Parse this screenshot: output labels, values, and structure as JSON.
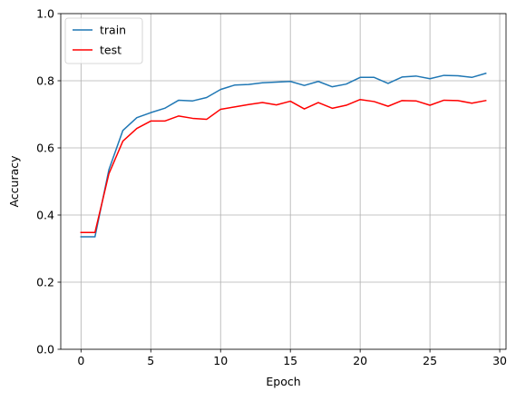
{
  "chart_data": {
    "type": "line",
    "title": "",
    "xlabel": "Epoch",
    "ylabel": "Accuracy",
    "xlim": [
      -1.45,
      30.45
    ],
    "ylim": [
      0.0,
      1.0
    ],
    "xticks": [
      0,
      5,
      10,
      15,
      20,
      25,
      30
    ],
    "xtick_labels": [
      "0",
      "5",
      "10",
      "15",
      "20",
      "25",
      "30"
    ],
    "yticks": [
      0.0,
      0.2,
      0.4,
      0.6,
      0.8,
      1.0
    ],
    "ytick_labels": [
      "0.0",
      "0.2",
      "0.4",
      "0.6",
      "0.8",
      "1.0"
    ],
    "grid": true,
    "legend_position": "upper-left",
    "x": [
      0,
      1,
      2,
      3,
      4,
      5,
      6,
      7,
      8,
      9,
      10,
      11,
      12,
      13,
      14,
      15,
      16,
      17,
      18,
      19,
      20,
      21,
      22,
      23,
      24,
      25,
      26,
      27,
      28,
      29
    ],
    "series": [
      {
        "name": "train",
        "color": "#1f77b4",
        "values": [
          0.335,
          0.335,
          0.535,
          0.652,
          0.69,
          0.705,
          0.718,
          0.742,
          0.74,
          0.75,
          0.774,
          0.787,
          0.789,
          0.794,
          0.796,
          0.798,
          0.786,
          0.798,
          0.782,
          0.79,
          0.81,
          0.81,
          0.792,
          0.811,
          0.814,
          0.806,
          0.816,
          0.815,
          0.81,
          0.822
        ]
      },
      {
        "name": "test",
        "color": "#ff0000",
        "values": [
          0.348,
          0.348,
          0.523,
          0.62,
          0.658,
          0.68,
          0.68,
          0.695,
          0.688,
          0.685,
          0.715,
          0.722,
          0.729,
          0.735,
          0.728,
          0.739,
          0.716,
          0.735,
          0.718,
          0.727,
          0.744,
          0.738,
          0.724,
          0.741,
          0.74,
          0.727,
          0.742,
          0.741,
          0.733,
          0.741
        ]
      }
    ]
  }
}
